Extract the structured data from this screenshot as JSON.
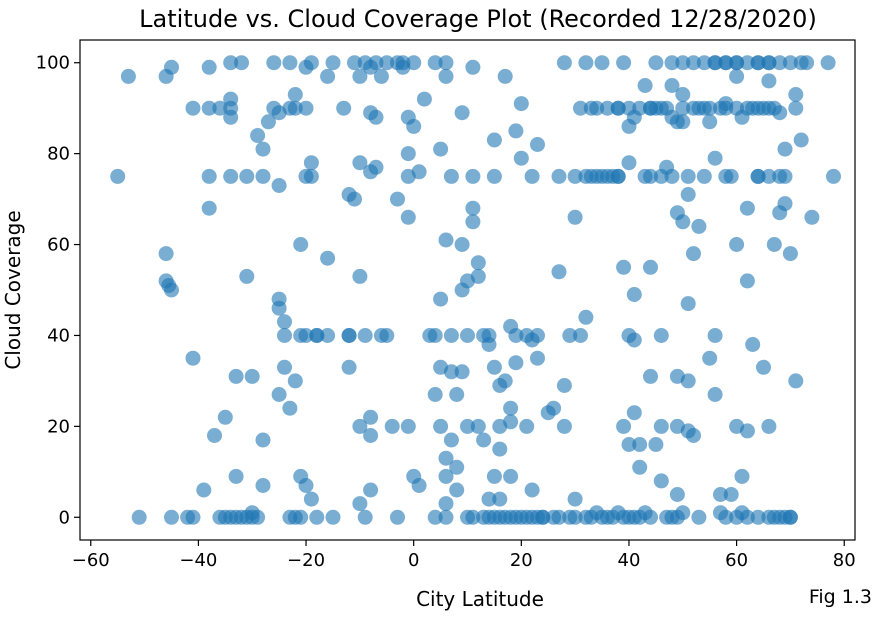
{
  "chart_data": {
    "type": "scatter",
    "title": "Latitude vs. Cloud Coverage Plot (Recorded 12/28/2020)",
    "xlabel": "City Latitude",
    "ylabel": "Cloud Coverage",
    "xlim": [
      -62,
      82
    ],
    "ylim": [
      -5,
      105
    ],
    "xticks": [
      -60,
      -40,
      -20,
      0,
      20,
      40,
      60,
      80
    ],
    "yticks": [
      0,
      20,
      40,
      60,
      80,
      100
    ],
    "xtick_labels": [
      "−60",
      "−40",
      "−20",
      "0",
      "20",
      "40",
      "60",
      "80"
    ],
    "ytick_labels": [
      "0",
      "20",
      "40",
      "60",
      "80",
      "100"
    ],
    "grid": false,
    "marker_color": "#1f77b4",
    "marker_alpha": 0.6,
    "caption": "Fig 1.3",
    "points": [
      [
        -55,
        75
      ],
      [
        -53,
        97
      ],
      [
        -51,
        0
      ],
      [
        -46,
        97
      ],
      [
        -46,
        52
      ],
      [
        -46,
        58
      ],
      [
        -45.5,
        51
      ],
      [
        -45,
        50
      ],
      [
        -45,
        99
      ],
      [
        -45,
        0
      ],
      [
        -42,
        0
      ],
      [
        -41,
        90
      ],
      [
        -41,
        35
      ],
      [
        -41,
        0
      ],
      [
        -39,
        6
      ],
      [
        -38,
        99
      ],
      [
        -38,
        90
      ],
      [
        -38,
        68
      ],
      [
        -38,
        75
      ],
      [
        -37,
        18
      ],
      [
        -36,
        90
      ],
      [
        -35,
        22
      ],
      [
        -35,
        0
      ],
      [
        -34,
        100
      ],
      [
        -34,
        92
      ],
      [
        -34,
        90
      ],
      [
        -34,
        88
      ],
      [
        -34,
        75
      ],
      [
        -33,
        31
      ],
      [
        -33,
        9
      ],
      [
        -33,
        0
      ],
      [
        -32,
        100
      ],
      [
        -31,
        0
      ],
      [
        -31,
        53
      ],
      [
        -31,
        75
      ],
      [
        -30,
        31
      ],
      [
        -30,
        1
      ],
      [
        -29,
        84
      ],
      [
        -29,
        0
      ],
      [
        -28,
        17
      ],
      [
        -28,
        7
      ],
      [
        -28,
        81
      ],
      [
        -28,
        75
      ],
      [
        -27,
        87
      ],
      [
        -26,
        90
      ],
      [
        -26,
        100
      ],
      [
        -25,
        89
      ],
      [
        -25,
        73
      ],
      [
        -25,
        48
      ],
      [
        -25,
        46
      ],
      [
        -25,
        27
      ],
      [
        -24,
        33
      ],
      [
        -24,
        43
      ],
      [
        -24,
        40
      ],
      [
        -23,
        24
      ],
      [
        -23,
        0
      ],
      [
        -23,
        90
      ],
      [
        -23,
        100
      ],
      [
        -22,
        30
      ],
      [
        -22,
        93
      ],
      [
        -22,
        90
      ],
      [
        -21,
        60
      ],
      [
        -21,
        9
      ],
      [
        -21,
        40
      ],
      [
        -20,
        7
      ],
      [
        -20,
        75
      ],
      [
        -20,
        90
      ],
      [
        -20,
        99
      ],
      [
        -19,
        4
      ],
      [
        -19,
        78
      ],
      [
        -19,
        100
      ],
      [
        -19,
        75
      ],
      [
        -18,
        0
      ],
      [
        -18,
        40
      ],
      [
        -16,
        97
      ],
      [
        -16,
        57
      ],
      [
        -16,
        40
      ],
      [
        -15,
        100
      ],
      [
        -15,
        0
      ],
      [
        -13,
        90
      ],
      [
        -12,
        33
      ],
      [
        -12,
        71
      ],
      [
        -12,
        40
      ],
      [
        -11,
        100
      ],
      [
        -11,
        70
      ],
      [
        -10,
        97
      ],
      [
        -10,
        78
      ],
      [
        -10,
        53
      ],
      [
        -10,
        20
      ],
      [
        -10,
        3
      ],
      [
        -9,
        0
      ],
      [
        -9,
        100
      ],
      [
        -9,
        40
      ],
      [
        -8,
        89
      ],
      [
        -8,
        76
      ],
      [
        -8,
        99
      ],
      [
        -8,
        18
      ],
      [
        -8,
        22
      ],
      [
        -8,
        6
      ],
      [
        -7,
        88
      ],
      [
        -7,
        77
      ],
      [
        -7,
        100
      ],
      [
        -6,
        97
      ],
      [
        -6,
        40
      ],
      [
        -5,
        100
      ],
      [
        -5,
        40
      ],
      [
        -4,
        20
      ],
      [
        -3,
        0
      ],
      [
        -3,
        70
      ],
      [
        -3,
        100
      ],
      [
        -2,
        100
      ],
      [
        -2,
        99
      ],
      [
        -1,
        88
      ],
      [
        -1,
        80
      ],
      [
        -1,
        75
      ],
      [
        -1,
        66
      ],
      [
        -1,
        20
      ],
      [
        0,
        86
      ],
      [
        0,
        9
      ],
      [
        0,
        100
      ],
      [
        1,
        76
      ],
      [
        1,
        7
      ],
      [
        2,
        92
      ],
      [
        3,
        40
      ],
      [
        4,
        0
      ],
      [
        4,
        100
      ],
      [
        4,
        27
      ],
      [
        4,
        40
      ],
      [
        5,
        81
      ],
      [
        5,
        48
      ],
      [
        5,
        33
      ],
      [
        5,
        20
      ],
      [
        6,
        100
      ],
      [
        6,
        97
      ],
      [
        6,
        61
      ],
      [
        6,
        13
      ],
      [
        6,
        9
      ],
      [
        6,
        3
      ],
      [
        6,
        0
      ],
      [
        7,
        75
      ],
      [
        7,
        40
      ],
      [
        7,
        17
      ],
      [
        7,
        32
      ],
      [
        8,
        27
      ],
      [
        8,
        6
      ],
      [
        8,
        11
      ],
      [
        9,
        60
      ],
      [
        9,
        50
      ],
      [
        9,
        32
      ],
      [
        9,
        89
      ],
      [
        10,
        0
      ],
      [
        10,
        52
      ],
      [
        10,
        40
      ],
      [
        10,
        20
      ],
      [
        11,
        99
      ],
      [
        11,
        68
      ],
      [
        11,
        65
      ],
      [
        11,
        75
      ],
      [
        11,
        0
      ],
      [
        12,
        56
      ],
      [
        12,
        53
      ],
      [
        12,
        20
      ],
      [
        13,
        40
      ],
      [
        13,
        17
      ],
      [
        13,
        0
      ],
      [
        14,
        38
      ],
      [
        14,
        40
      ],
      [
        14,
        4
      ],
      [
        15,
        33
      ],
      [
        15,
        83
      ],
      [
        15,
        75
      ],
      [
        15,
        9
      ],
      [
        15,
        0
      ],
      [
        16,
        29
      ],
      [
        16,
        20
      ],
      [
        16,
        15
      ],
      [
        16,
        4
      ],
      [
        17,
        97
      ],
      [
        17,
        30
      ],
      [
        17,
        0
      ],
      [
        18,
        42
      ],
      [
        18,
        21
      ],
      [
        18,
        9
      ],
      [
        18,
        24
      ],
      [
        19,
        85
      ],
      [
        19,
        40
      ],
      [
        19,
        34
      ],
      [
        19,
        0
      ],
      [
        20,
        79
      ],
      [
        20,
        91
      ],
      [
        21,
        40
      ],
      [
        21,
        20
      ],
      [
        21,
        0
      ],
      [
        22,
        75
      ],
      [
        22,
        6
      ],
      [
        22,
        39
      ],
      [
        23,
        40
      ],
      [
        23,
        35
      ],
      [
        23,
        82
      ],
      [
        23,
        0
      ],
      [
        24,
        0
      ],
      [
        25,
        23
      ],
      [
        26,
        24
      ],
      [
        27,
        75
      ],
      [
        27,
        54
      ],
      [
        27,
        0
      ],
      [
        28,
        100
      ],
      [
        28,
        29
      ],
      [
        28,
        20
      ],
      [
        29,
        40
      ],
      [
        29,
        0
      ],
      [
        30,
        66
      ],
      [
        30,
        4
      ],
      [
        31,
        90
      ],
      [
        31,
        40
      ],
      [
        32,
        100
      ],
      [
        32,
        44
      ],
      [
        32,
        0
      ],
      [
        33,
        90
      ],
      [
        33,
        75
      ],
      [
        34,
        75
      ],
      [
        34,
        1
      ],
      [
        35,
        100
      ],
      [
        35,
        75
      ],
      [
        36,
        90
      ],
      [
        37,
        75
      ],
      [
        37,
        0
      ],
      [
        38,
        90
      ],
      [
        38,
        75
      ],
      [
        39,
        100
      ],
      [
        39,
        55
      ],
      [
        39,
        20
      ],
      [
        39,
        0
      ],
      [
        40,
        90
      ],
      [
        40,
        86
      ],
      [
        40,
        78
      ],
      [
        40,
        40
      ],
      [
        40,
        16
      ],
      [
        41,
        88
      ],
      [
        41,
        49
      ],
      [
        41,
        39
      ],
      [
        41,
        23
      ],
      [
        41,
        0
      ],
      [
        42,
        90
      ],
      [
        42,
        11
      ],
      [
        42,
        16
      ],
      [
        43,
        95
      ],
      [
        43,
        75
      ],
      [
        43,
        1
      ],
      [
        44,
        90
      ],
      [
        44,
        31
      ],
      [
        44,
        55
      ],
      [
        45,
        100
      ],
      [
        45,
        90
      ],
      [
        45,
        16
      ],
      [
        46,
        75
      ],
      [
        46,
        40
      ],
      [
        46,
        8
      ],
      [
        46,
        20
      ],
      [
        47,
        77
      ],
      [
        47,
        90
      ],
      [
        47,
        0
      ],
      [
        48,
        95
      ],
      [
        48,
        88
      ],
      [
        48,
        75
      ],
      [
        49,
        87
      ],
      [
        49,
        67
      ],
      [
        49,
        5
      ],
      [
        49,
        31
      ],
      [
        49,
        20
      ],
      [
        49,
        0
      ],
      [
        50,
        100
      ],
      [
        50,
        93
      ],
      [
        50,
        87
      ],
      [
        50,
        65
      ],
      [
        50,
        1
      ],
      [
        51,
        47
      ],
      [
        51,
        19
      ],
      [
        51,
        75
      ],
      [
        51,
        71
      ],
      [
        51,
        30
      ],
      [
        52,
        100
      ],
      [
        52,
        58
      ],
      [
        52,
        18
      ],
      [
        53,
        90
      ],
      [
        53,
        64
      ],
      [
        53,
        0
      ],
      [
        54,
        100
      ],
      [
        54,
        75
      ],
      [
        54,
        90
      ],
      [
        55,
        87
      ],
      [
        55,
        90
      ],
      [
        55,
        35
      ],
      [
        56,
        100
      ],
      [
        56,
        79
      ],
      [
        56,
        40
      ],
      [
        56,
        27
      ],
      [
        57,
        90
      ],
      [
        57,
        5
      ],
      [
        57,
        1
      ],
      [
        58,
        100
      ],
      [
        58,
        91
      ],
      [
        58,
        75
      ],
      [
        58,
        0
      ],
      [
        59,
        75
      ],
      [
        59,
        5
      ],
      [
        60,
        100
      ],
      [
        60,
        90
      ],
      [
        60,
        97
      ],
      [
        60,
        20
      ],
      [
        60,
        60
      ],
      [
        61,
        88
      ],
      [
        61,
        9
      ],
      [
        61,
        1
      ],
      [
        62,
        100
      ],
      [
        62,
        68
      ],
      [
        62,
        52
      ],
      [
        62,
        19
      ],
      [
        63,
        90
      ],
      [
        63,
        38
      ],
      [
        64,
        100
      ],
      [
        64,
        75
      ],
      [
        64,
        0
      ],
      [
        65,
        90
      ],
      [
        65,
        33
      ],
      [
        66,
        100
      ],
      [
        66,
        96
      ],
      [
        66,
        20
      ],
      [
        66,
        75
      ],
      [
        66,
        0
      ],
      [
        67,
        90
      ],
      [
        67,
        60
      ],
      [
        67,
        0
      ],
      [
        68,
        100
      ],
      [
        68,
        89
      ],
      [
        68,
        75
      ],
      [
        68,
        67
      ],
      [
        68,
        0
      ],
      [
        69,
        81
      ],
      [
        69,
        75
      ],
      [
        69,
        69
      ],
      [
        69,
        0
      ],
      [
        70,
        100
      ],
      [
        70,
        58
      ],
      [
        70,
        0
      ],
      [
        71,
        93
      ],
      [
        71,
        90
      ],
      [
        71,
        30
      ],
      [
        72,
        100
      ],
      [
        72,
        83
      ],
      [
        73,
        100
      ],
      [
        74,
        66
      ],
      [
        77,
        100
      ],
      [
        78,
        75
      ],
      [
        14,
        0
      ],
      [
        16,
        0
      ],
      [
        18,
        0
      ],
      [
        20,
        0
      ],
      [
        22,
        0
      ],
      [
        24,
        0
      ],
      [
        26,
        0
      ],
      [
        30,
        0
      ],
      [
        33,
        0
      ],
      [
        35,
        0
      ],
      [
        36,
        0
      ],
      [
        38,
        1
      ],
      [
        40,
        0
      ],
      [
        42,
        0
      ],
      [
        44,
        0
      ],
      [
        48,
        0
      ],
      [
        60,
        0
      ],
      [
        62,
        0
      ],
      [
        70,
        0
      ],
      [
        -36,
        0
      ],
      [
        -34,
        0
      ],
      [
        -32,
        0
      ],
      [
        -30,
        0
      ],
      [
        -22,
        0
      ],
      [
        -21,
        0
      ],
      [
        38,
        90
      ],
      [
        44,
        90
      ],
      [
        46,
        90
      ],
      [
        50,
        90
      ],
      [
        52,
        90
      ],
      [
        58,
        90
      ],
      [
        62,
        90
      ],
      [
        64,
        90
      ],
      [
        66,
        90
      ],
      [
        34,
        90
      ],
      [
        36,
        75
      ],
      [
        38,
        75
      ],
      [
        30,
        75
      ],
      [
        32,
        75
      ],
      [
        44,
        75
      ],
      [
        64,
        75
      ],
      [
        66,
        100
      ],
      [
        48,
        100
      ],
      [
        56,
        100
      ],
      [
        58,
        100
      ],
      [
        60,
        100
      ],
      [
        64,
        100
      ],
      [
        -20,
        40
      ],
      [
        -18,
        40
      ],
      [
        -12,
        40
      ]
    ]
  }
}
